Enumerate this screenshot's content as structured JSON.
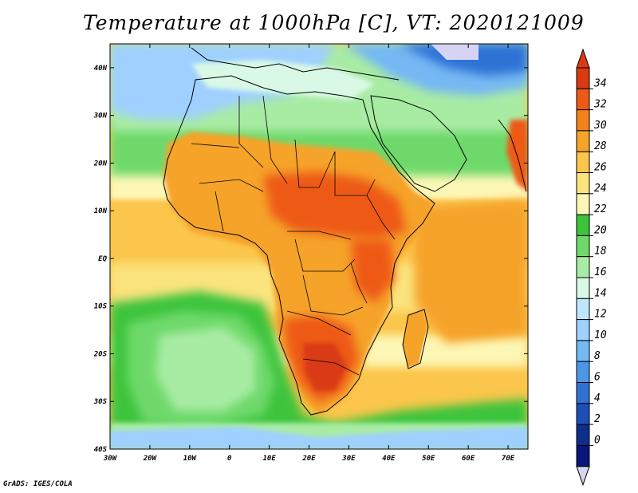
{
  "title": "Temperature at 1000hPa [C], VT: 2020121009",
  "credit": "GrADS: IGES/COLA",
  "map": {
    "lon_labels": [
      "30W",
      "20W",
      "10W",
      "0",
      "10E",
      "20E",
      "30E",
      "40E",
      "50E",
      "60E",
      "70E"
    ],
    "lat_labels": [
      "40N",
      "30N",
      "20N",
      "10N",
      "EQ",
      "10S",
      "20S",
      "30S",
      "40S"
    ],
    "lon_range": [
      -30,
      75
    ],
    "lat_range": [
      -40,
      45
    ]
  },
  "colorbar": {
    "labels": [
      "34",
      "32",
      "30",
      "28",
      "26",
      "24",
      "22",
      "20",
      "18",
      "16",
      "14",
      "12",
      "10",
      "8",
      "6",
      "4",
      "2",
      "0"
    ],
    "colors": [
      "#d93a12",
      "#ee5a14",
      "#f2821a",
      "#f6a32a",
      "#fbc64b",
      "#fbe37e",
      "#fdf7b6",
      "#3cc43c",
      "#6ed96a",
      "#a8eca4",
      "#d9f9e6",
      "#bfe6ff",
      "#9fd0ff",
      "#74b8f4",
      "#4d97e6",
      "#2f72d4",
      "#1c50b7",
      "#0e2e8c",
      "#0a147a"
    ],
    "over_color": "#d93a12",
    "under_color": "#d6d4f5"
  }
}
